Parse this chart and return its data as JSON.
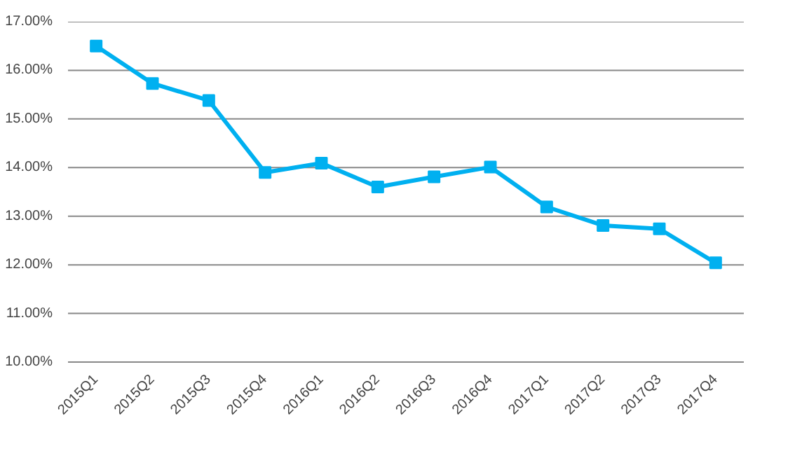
{
  "chart_data": {
    "type": "line",
    "categories": [
      "2015Q1",
      "2015Q2",
      "2015Q3",
      "2015Q4",
      "2016Q1",
      "2016Q2",
      "2016Q3",
      "2016Q4",
      "2017Q1",
      "2017Q2",
      "2017Q3",
      "2017Q4"
    ],
    "series": [
      {
        "color": "#00b0f0",
        "values": [
          16.5,
          15.73,
          15.38,
          13.9,
          14.09,
          13.6,
          13.81,
          14.01,
          13.19,
          12.81,
          12.74,
          12.04
        ]
      }
    ],
    "ylim": [
      10,
      17
    ],
    "yticks": [
      {
        "value": 10,
        "label": "10.00%"
      },
      {
        "value": 11,
        "label": "11.00%"
      },
      {
        "value": 12,
        "label": "12.00%"
      },
      {
        "value": 13,
        "label": "13.00%"
      },
      {
        "value": 14,
        "label": "14.00%"
      },
      {
        "value": 15,
        "label": "15.00%"
      },
      {
        "value": 16,
        "label": "16.00%"
      },
      {
        "value": 17,
        "label": "17.00%"
      }
    ],
    "grid": "y",
    "marker": "square",
    "line_style": "solid"
  }
}
